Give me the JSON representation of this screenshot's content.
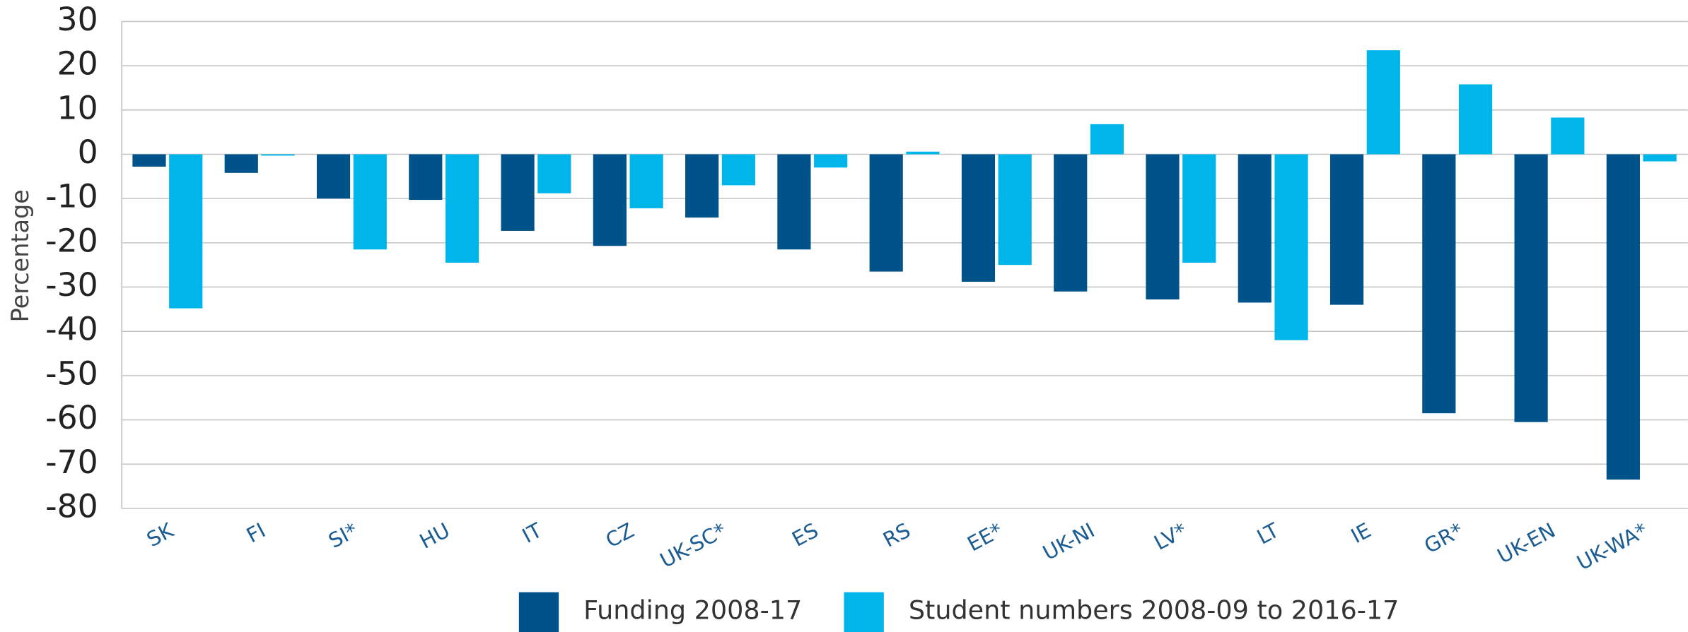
{
  "chart_data": {
    "type": "bar",
    "y_label": "Percentage",
    "categories": [
      "SK",
      "FI",
      "SI*",
      "HU",
      "IT",
      "CZ",
      "UK-SC*",
      "ES",
      "RS",
      "EE*",
      "UK-NI",
      "LV*",
      "LT",
      "IE",
      "GR*",
      "UK-EN",
      "UK-WA*"
    ],
    "series": [
      {
        "name": "Funding 2008-17",
        "color": "#00538a",
        "values": [
          -2.8,
          -4.2,
          -10,
          -10.3,
          -17.3,
          -20.7,
          -14.3,
          -21.5,
          -26.5,
          -28.8,
          -31,
          -32.8,
          -33.5,
          -34,
          -58.5,
          -60.5,
          -73.5
        ]
      },
      {
        "name": "Student numbers 2008-09 to 2016-17",
        "color": "#00b5e9",
        "values": [
          -34.8,
          -0.3,
          -21.5,
          -24.5,
          -8.8,
          -12.2,
          -7,
          -3,
          0.6,
          -25,
          6.8,
          -24.5,
          -42,
          23.5,
          15.8,
          8.3,
          -1.6
        ]
      }
    ],
    "ylim": [
      -80,
      30
    ],
    "yticks": [
      -80,
      -70,
      -60,
      -50,
      -40,
      -30,
      -20,
      -10,
      0,
      10,
      20,
      30
    ],
    "grid": true,
    "legend": "bottom"
  }
}
